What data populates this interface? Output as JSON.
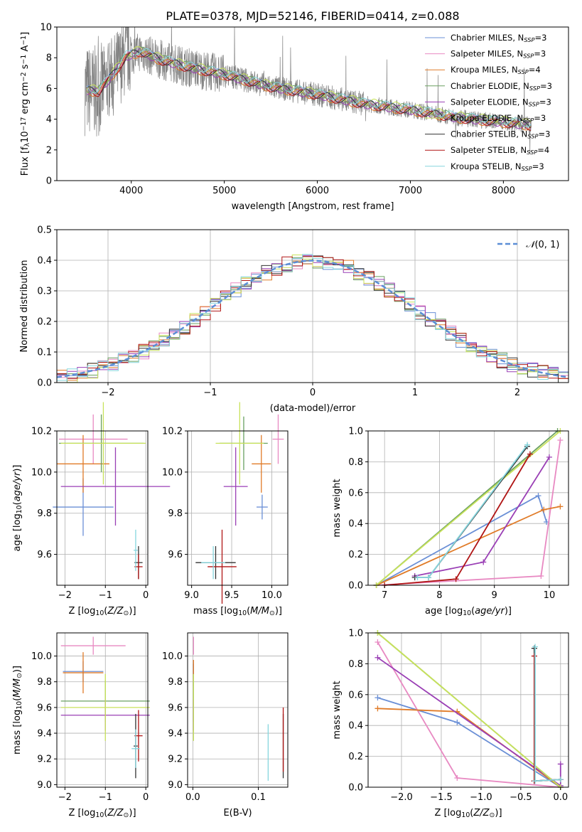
{
  "figure": {
    "title": "PLATE=0378, MJD=52146, FIBERID=0414, z=0.088"
  },
  "colors": {
    "Chabrier MILES": "#6a8fd6",
    "Salpeter MILES": "#e889c2",
    "Kroupa MILES": "#e07b28",
    "Chabrier ELODIE": "#6aa060",
    "Salpeter ELODIE": "#9a3fb5",
    "Kroupa ELODIE": "#c8e25a",
    "Chabrier STELIB": "#333333",
    "Salpeter STELIB": "#b01515",
    "Kroupa STELIB": "#86d6de",
    "data": "#808080",
    "normal": "#5b8ed6"
  },
  "chart_data": [
    {
      "id": "spectrum",
      "type": "line",
      "xlabel": "wavelength [Angstrom, rest frame]",
      "ylabel": "Flux [f_λ 10^-17 erg cm^-2 s^-1 A^-1]",
      "xlim": [
        3200,
        8700
      ],
      "ylim": [
        0,
        10
      ],
      "xticks": [
        4000,
        5000,
        6000,
        7000,
        8000
      ],
      "yticks": [
        0,
        2,
        4,
        6,
        8,
        10
      ],
      "grid": false,
      "legend_position": "top-right",
      "legend": [
        {
          "name": "Chabrier MILES",
          "nssp": "3"
        },
        {
          "name": "Salpeter MILES",
          "nssp": "3"
        },
        {
          "name": "Kroupa MILES",
          "nssp": "4"
        },
        {
          "name": "Chabrier ELODIE",
          "nssp": "3"
        },
        {
          "name": "Salpeter ELODIE",
          "nssp": "3"
        },
        {
          "name": "Kroupa ELODIE",
          "nssp": "3"
        },
        {
          "name": "Chabrier STELIB",
          "nssp": "3"
        },
        {
          "name": "Salpeter STELIB",
          "nssp": "4"
        },
        {
          "name": "Kroupa STELIB",
          "nssp": "3"
        }
      ],
      "continuum": {
        "x": [
          3500,
          3650,
          3800,
          3950,
          4100,
          4300,
          4600,
          5000,
          5500,
          6000,
          6500,
          7000,
          7500,
          8000,
          8300
        ],
        "y": [
          5.9,
          5.8,
          6.9,
          8.1,
          8.4,
          7.9,
          7.4,
          6.9,
          6.1,
          5.6,
          5.0,
          4.6,
          4.1,
          3.8,
          3.6
        ]
      }
    },
    {
      "id": "residuals",
      "type": "bar",
      "xlabel": "(data-model)/error",
      "ylabel": "Normed distribution",
      "xlim": [
        -2.5,
        2.5
      ],
      "ylim": [
        0,
        0.5
      ],
      "xticks": [
        -2,
        -1,
        0,
        1,
        2
      ],
      "yticks": [
        0.0,
        0.1,
        0.2,
        0.3,
        0.4,
        0.5
      ],
      "grid": true,
      "legend_position": "top-right",
      "normal_label": "N(0,1)"
    },
    {
      "id": "age-vs-Z",
      "type": "scatter",
      "xlabel": "Z [log10(Z/Z⊙)]",
      "ylabel": "age [log10(age/yr)]",
      "xlim": [
        -2.2,
        0.05
      ],
      "ylim": [
        9.45,
        10.2
      ],
      "xticks": [
        -2,
        -1,
        0
      ],
      "yticks": [
        9.6,
        9.8,
        10.0,
        10.2
      ],
      "grid": true,
      "points": [
        {
          "model": "Chabrier MILES",
          "x": -1.55,
          "xerr": 0.75,
          "y": 9.83,
          "yerr": 0.14
        },
        {
          "model": "Salpeter MILES",
          "x": -1.3,
          "xerr": 0.85,
          "y": 10.16,
          "yerr": 0.12
        },
        {
          "model": "Kroupa MILES",
          "x": -1.55,
          "xerr": 0.65,
          "y": 10.04,
          "yerr": 0.14
        },
        {
          "model": "Chabrier ELODIE",
          "x": -1.1,
          "xerr": 1.05,
          "y": 10.14,
          "yerr": 0.14
        },
        {
          "model": "Salpeter ELODIE",
          "x": -0.75,
          "xerr": 1.35,
          "y": 9.93,
          "yerr": 0.19
        },
        {
          "model": "Kroupa ELODIE",
          "x": -1.05,
          "xerr": 1.05,
          "y": 10.14,
          "yerr": 0.2
        },
        {
          "model": "Chabrier STELIB",
          "x": -0.18,
          "xerr": 0.1,
          "y": 9.56,
          "yerr": 0.08
        },
        {
          "model": "Salpeter STELIB",
          "x": -0.18,
          "xerr": 0.1,
          "y": 9.54,
          "yerr": 0.06
        },
        {
          "model": "Kroupa STELIB",
          "x": -0.25,
          "xerr": 0.05,
          "y": 9.62,
          "yerr": 0.1
        }
      ]
    },
    {
      "id": "age-vs-mass",
      "type": "scatter",
      "xlabel": "mass [log10(M/M⊙)]",
      "ylabel": "",
      "xlim": [
        8.95,
        10.2
      ],
      "ylim": [
        9.45,
        10.2
      ],
      "xticks": [
        9.0,
        9.5,
        10.0
      ],
      "yticks": [
        9.6,
        9.8,
        10.0,
        10.2
      ],
      "grid": true,
      "points": [
        {
          "model": "Chabrier MILES",
          "x": 9.88,
          "xerr": 0.07,
          "y": 9.83,
          "yerr": 0.06
        },
        {
          "model": "Salpeter MILES",
          "x": 10.08,
          "xerr": 0.07,
          "y": 10.16,
          "yerr": 0.12
        },
        {
          "model": "Kroupa MILES",
          "x": 9.87,
          "xerr": 0.12,
          "y": 10.04,
          "yerr": 0.14
        },
        {
          "model": "Chabrier ELODIE",
          "x": 9.65,
          "xerr": 0.3,
          "y": 10.14,
          "yerr": 0.13
        },
        {
          "model": "Salpeter ELODIE",
          "x": 9.55,
          "xerr": 0.15,
          "y": 9.93,
          "yerr": 0.19
        },
        {
          "model": "Kroupa ELODIE",
          "x": 9.6,
          "xerr": 0.3,
          "y": 10.14,
          "yerr": 0.2
        },
        {
          "model": "Chabrier STELIB",
          "x": 9.3,
          "xerr": 0.25,
          "y": 9.56,
          "yerr": 0.08
        },
        {
          "model": "Salpeter STELIB",
          "x": 9.38,
          "xerr": 0.18,
          "y": 9.54,
          "yerr": 0.18
        },
        {
          "model": "Kroupa STELIB",
          "x": 9.27,
          "xerr": 0.15,
          "y": 9.56,
          "yerr": 0.08
        }
      ]
    },
    {
      "id": "mass-weight-vs-age",
      "type": "line",
      "xlabel": "age [log10(age/yr)]",
      "ylabel": "mass weight",
      "xlim": [
        6.7,
        10.35
      ],
      "ylim": [
        0,
        1
      ],
      "xticks": [
        7,
        8,
        9,
        10
      ],
      "yticks": [
        0.0,
        0.2,
        0.4,
        0.6,
        0.8,
        1.0
      ],
      "grid": true,
      "series": [
        {
          "model": "Chabrier MILES",
          "x": [
            6.85,
            9.8,
            9.95
          ],
          "y": [
            0.0,
            0.58,
            0.41
          ]
        },
        {
          "model": "Salpeter MILES",
          "x": [
            6.85,
            9.85,
            10.2
          ],
          "y": [
            0.0,
            0.06,
            0.94
          ]
        },
        {
          "model": "Kroupa MILES",
          "x": [
            6.85,
            9.9,
            10.2
          ],
          "y": [
            0.0,
            0.49,
            0.51
          ]
        },
        {
          "model": "Chabrier ELODIE",
          "x": [
            6.85,
            10.15
          ],
          "y": [
            0.0,
            1.0
          ]
        },
        {
          "model": "Salpeter ELODIE",
          "x": [
            7.55,
            8.8,
            10.0
          ],
          "y": [
            0.06,
            0.15,
            0.83
          ]
        },
        {
          "model": "Kroupa ELODIE",
          "x": [
            6.85,
            10.2
          ],
          "y": [
            0.0,
            1.0
          ]
        },
        {
          "model": "Chabrier STELIB",
          "x": [
            7.55,
            7.8,
            9.6
          ],
          "y": [
            0.05,
            0.05,
            0.9
          ]
        },
        {
          "model": "Salpeter STELIB",
          "x": [
            7.0,
            8.3,
            9.65
          ],
          "y": [
            0.0,
            0.04,
            0.85
          ]
        },
        {
          "model": "Kroupa STELIB",
          "x": [
            7.6,
            7.8,
            9.6
          ],
          "y": [
            0.05,
            0.05,
            0.91
          ]
        }
      ]
    },
    {
      "id": "mass-vs-Z",
      "type": "scatter",
      "xlabel": "Z [log10(Z/Z⊙)]",
      "ylabel": "mass [log10(M/M⊙)]",
      "xlim": [
        -2.2,
        0.05
      ],
      "ylim": [
        8.98,
        10.18
      ],
      "xticks": [
        -2,
        -1,
        0
      ],
      "yticks": [
        9.0,
        9.2,
        9.4,
        9.6,
        9.8,
        10.0
      ],
      "grid": true,
      "points": [
        {
          "model": "Chabrier MILES",
          "x": -1.55,
          "xerr": 0.5,
          "y": 9.88,
          "yerr": 0.08
        },
        {
          "model": "Salpeter MILES",
          "x": -1.3,
          "xerr": 0.8,
          "y": 10.08,
          "yerr": 0.07
        },
        {
          "model": "Kroupa MILES",
          "x": -1.55,
          "xerr": 0.5,
          "y": 9.87,
          "yerr": 0.16
        },
        {
          "model": "Chabrier ELODIE",
          "x": -1.0,
          "xerr": 1.1,
          "y": 9.65,
          "yerr": 0.16
        },
        {
          "model": "Salpeter ELODIE",
          "x": -1.0,
          "xerr": 1.1,
          "y": 9.54,
          "yerr": 0.12
        },
        {
          "model": "Kroupa ELODIE",
          "x": -1.0,
          "xerr": 1.1,
          "y": 9.6,
          "yerr": 0.26
        },
        {
          "model": "Chabrier STELIB",
          "x": -0.25,
          "xerr": 0.05,
          "y": 9.3,
          "yerr": 0.25
        },
        {
          "model": "Salpeter STELIB",
          "x": -0.18,
          "xerr": 0.1,
          "y": 9.38,
          "yerr": 0.2
        },
        {
          "model": "Kroupa STELIB",
          "x": -0.25,
          "xerr": 0.1,
          "y": 9.28,
          "yerr": 0.15
        }
      ]
    },
    {
      "id": "mass-vs-ebv",
      "type": "scatter",
      "xlabel": "E(B-V)",
      "ylabel": "",
      "xlim": [
        -0.008,
        0.145
      ],
      "ylim": [
        8.98,
        10.18
      ],
      "xticks": [
        0.0,
        0.1
      ],
      "yticks": [
        9.0,
        9.2,
        9.4,
        9.6,
        9.8,
        10.0
      ],
      "grid": true,
      "points": [
        {
          "model": "Chabrier MILES",
          "x": 0.001,
          "xerr": 0,
          "y": 9.88,
          "yerr": 0.06
        },
        {
          "model": "Salpeter MILES",
          "x": 0.001,
          "xerr": 0,
          "y": 10.08,
          "yerr": 0.07
        },
        {
          "model": "Kroupa MILES",
          "x": 0.001,
          "xerr": 0,
          "y": 9.87,
          "yerr": 0.1
        },
        {
          "model": "Chabrier ELODIE",
          "x": 0.001,
          "xerr": 0,
          "y": 9.65,
          "yerr": 0.16
        },
        {
          "model": "Salpeter ELODIE",
          "x": 0.001,
          "xerr": 0,
          "y": 9.54,
          "yerr": 0.12
        },
        {
          "model": "Kroupa ELODIE",
          "x": 0.001,
          "xerr": 0,
          "y": 9.6,
          "yerr": 0.26
        },
        {
          "model": "Chabrier STELIB",
          "x": 0.138,
          "xerr": 0,
          "y": 9.3,
          "yerr": 0.25
        },
        {
          "model": "Salpeter STELIB",
          "x": 0.138,
          "xerr": 0,
          "y": 9.35,
          "yerr": 0.25
        },
        {
          "model": "Kroupa STELIB",
          "x": 0.115,
          "xerr": 0,
          "y": 9.25,
          "yerr": 0.22
        }
      ]
    },
    {
      "id": "mass-weight-vs-Z",
      "type": "line",
      "xlabel": "Z [log10(Z/Z⊙)]",
      "ylabel": "mass weight",
      "xlim": [
        -2.42,
        0.1
      ],
      "ylim": [
        0,
        1
      ],
      "xticks": [
        -2.0,
        -1.5,
        -1.0,
        -0.5,
        0.0
      ],
      "yticks": [
        0.0,
        0.2,
        0.4,
        0.6,
        0.8,
        1.0
      ],
      "grid": true,
      "series": [
        {
          "model": "Chabrier MILES",
          "x": [
            -2.3,
            -1.3,
            0.0
          ],
          "y": [
            0.58,
            0.42,
            0.0
          ]
        },
        {
          "model": "Salpeter MILES",
          "x": [
            -2.3,
            -1.3,
            0.0
          ],
          "y": [
            0.94,
            0.06,
            0.0
          ]
        },
        {
          "model": "Kroupa MILES",
          "x": [
            -2.3,
            -1.3,
            0.0
          ],
          "y": [
            0.51,
            0.49,
            0.0
          ]
        },
        {
          "model": "Chabrier ELODIE",
          "x": [
            -2.3,
            0.0
          ],
          "y": [
            1.0,
            0.0
          ]
        },
        {
          "model": "Salpeter ELODIE",
          "x": [
            -2.3,
            0.0,
            0.0
          ],
          "y": [
            0.84,
            0.01,
            0.15
          ]
        },
        {
          "model": "Kroupa ELODIE",
          "x": [
            -2.3,
            0.0
          ],
          "y": [
            1.0,
            0.0
          ]
        },
        {
          "model": "Chabrier STELIB",
          "x": [
            -0.33,
            -0.33,
            0.0
          ],
          "y": [
            0.9,
            0.04,
            0.05
          ]
        },
        {
          "model": "Salpeter STELIB",
          "x": [
            -0.33,
            -0.33,
            0.0
          ],
          "y": [
            0.85,
            0.04,
            0.05
          ]
        },
        {
          "model": "Kroupa STELIB",
          "x": [
            -0.32,
            -0.32,
            0.0
          ],
          "y": [
            0.91,
            0.04,
            0.05
          ]
        }
      ]
    }
  ]
}
